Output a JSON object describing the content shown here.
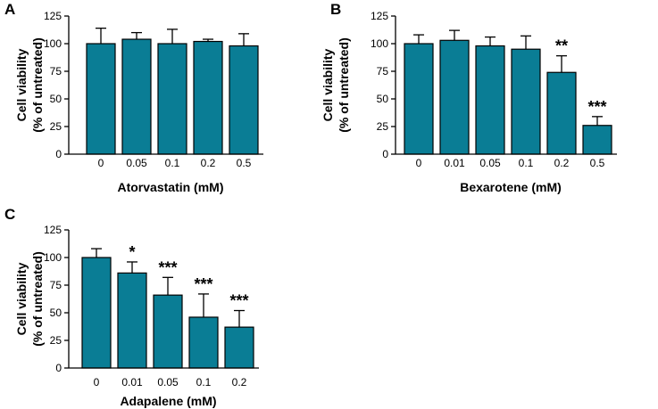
{
  "colors": {
    "bar": "#0a7d95",
    "axis": "#000000",
    "background": "#ffffff"
  },
  "chart_data": [
    {
      "panel": "A",
      "type": "bar",
      "categories": [
        "0",
        "0.05",
        "0.1",
        "0.2",
        "0.5"
      ],
      "values": [
        100,
        104,
        100,
        102,
        98
      ],
      "errors": [
        14,
        6,
        13,
        2,
        11
      ],
      "significance": [
        "",
        "",
        "",
        "",
        ""
      ],
      "xlabel": "Atorvastatin (mM)",
      "ylabel": [
        "Cell viability",
        "(% of untreated)"
      ],
      "ylim": [
        0,
        125
      ],
      "yticks": [
        0,
        25,
        50,
        75,
        100,
        125
      ]
    },
    {
      "panel": "B",
      "type": "bar",
      "categories": [
        "0",
        "0.01",
        "0.05",
        "0.1",
        "0.2",
        "0.5"
      ],
      "values": [
        100,
        103,
        98,
        95,
        74,
        26
      ],
      "errors": [
        8,
        9,
        8,
        12,
        15,
        8
      ],
      "significance": [
        "",
        "",
        "",
        "",
        "**",
        "***"
      ],
      "xlabel": "Bexarotene (mM)",
      "ylabel": [
        "Cell viability",
        "(% of untreated)"
      ],
      "ylim": [
        0,
        125
      ],
      "yticks": [
        0,
        25,
        50,
        75,
        100,
        125
      ]
    },
    {
      "panel": "C",
      "type": "bar",
      "categories": [
        "0",
        "0.01",
        "0.05",
        "0.1",
        "0.2"
      ],
      "values": [
        100,
        86,
        66,
        46,
        37
      ],
      "errors": [
        8,
        10,
        16,
        21,
        15
      ],
      "significance": [
        "",
        "*",
        "***",
        "***",
        "***"
      ],
      "xlabel": "Adapalene (mM)",
      "ylabel": [
        "Cell viability",
        "(% of untreated)"
      ],
      "ylim": [
        0,
        125
      ],
      "yticks": [
        0,
        25,
        50,
        75,
        100,
        125
      ]
    }
  ]
}
